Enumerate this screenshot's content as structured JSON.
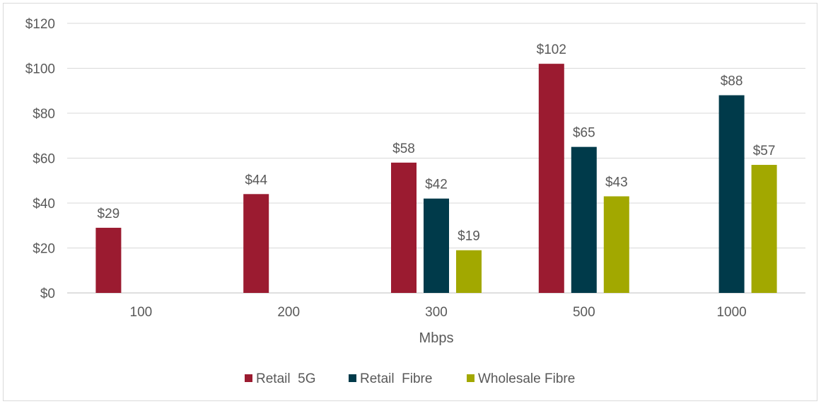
{
  "chart_data": {
    "type": "bar",
    "title": "",
    "xlabel": "Mbps",
    "ylabel": "",
    "categories": [
      "100",
      "200",
      "300",
      "500",
      "1000"
    ],
    "ylim": [
      0,
      120
    ],
    "y_ticks": [
      "$0",
      "$20",
      "$40",
      "$60",
      "$80",
      "$100",
      "$120"
    ],
    "y_tick_values": [
      0,
      20,
      40,
      60,
      80,
      100,
      120
    ],
    "value_prefix": "$",
    "grid": true,
    "legend_position": "bottom",
    "series": [
      {
        "name": "Retail  5G",
        "color": "#9b1b30",
        "values": [
          29,
          44,
          58,
          102,
          null
        ]
      },
      {
        "name": "Retail  Fibre",
        "color": "#003a4a",
        "values": [
          null,
          null,
          42,
          65,
          88
        ]
      },
      {
        "name": "Wholesale Fibre",
        "color": "#a2a800",
        "values": [
          null,
          null,
          19,
          43,
          57
        ]
      }
    ],
    "data_labels": [
      [
        "$29",
        "$44",
        "$58",
        "$102",
        null
      ],
      [
        null,
        null,
        "$42",
        "$65",
        "$88"
      ],
      [
        null,
        null,
        "$19",
        "$43",
        "$57"
      ]
    ]
  }
}
